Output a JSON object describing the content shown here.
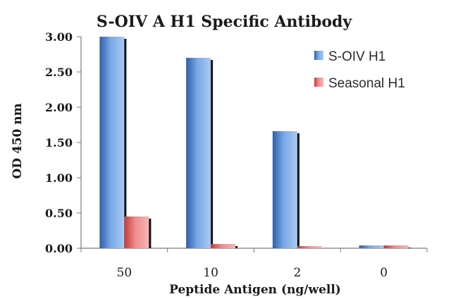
{
  "chart_data": {
    "type": "bar",
    "title": "S-OIV A H1 Specific Antibody",
    "xlabel": "Peptide Antigen (ng/well)",
    "ylabel": "OD 450 nm",
    "categories": [
      "50",
      "10",
      "2",
      "0"
    ],
    "ylim": [
      0,
      3.0
    ],
    "yticks": [
      "0.00",
      "0.50",
      "1.00",
      "1.50",
      "2.00",
      "2.50",
      "3.00"
    ],
    "grid": false,
    "legend_position": "top-right",
    "series": [
      {
        "name": "S-OIV H1",
        "values": [
          3.0,
          2.7,
          1.66,
          0.04
        ],
        "color": "#5b8fd6"
      },
      {
        "name": "Seasonal H1",
        "values": [
          0.45,
          0.06,
          0.03,
          0.04
        ],
        "color": "#e06a6a"
      }
    ]
  }
}
